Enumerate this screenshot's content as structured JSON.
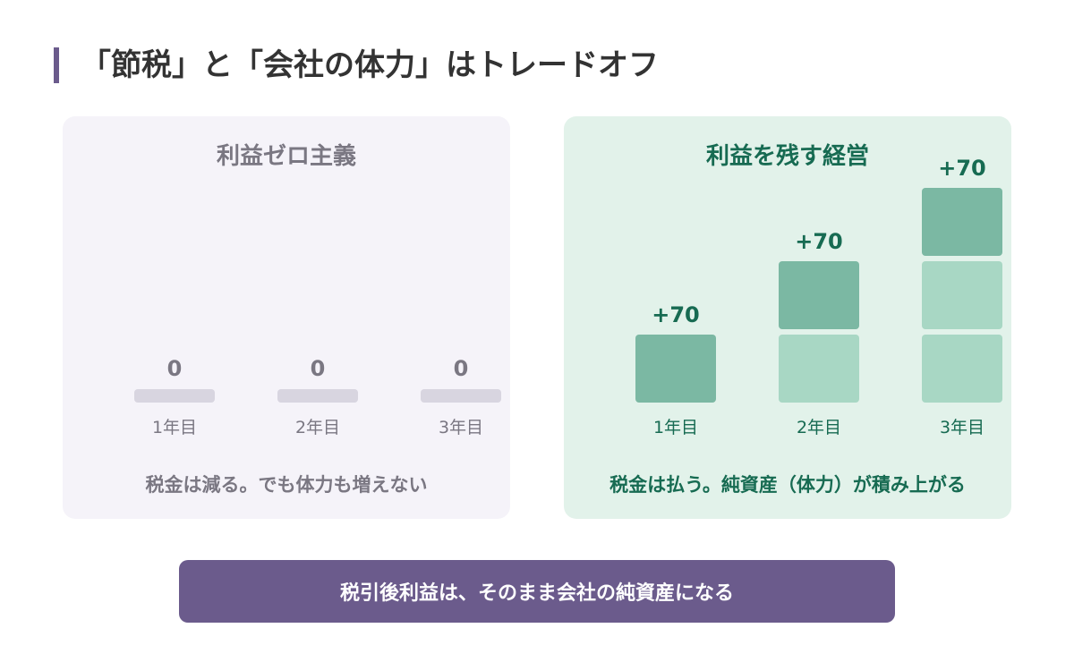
{
  "title": "「節税」と「会社の体力」はトレードオフ",
  "colors": {
    "accent": "#6b5b8c",
    "left_bg": "#f5f3f9",
    "left_text": "#7a7782",
    "left_bar": "#d8d5e0",
    "right_bg": "#e2f2ea",
    "right_text": "#176b52",
    "new_block": "#7bb8a3",
    "old_block": "#a8d7c4"
  },
  "left_panel": {
    "heading": "利益ゼロ主義",
    "caption": "税金は減る。でも体力も増えない",
    "chart_data": {
      "type": "bar",
      "categories": [
        "1年目",
        "2年目",
        "3年目"
      ],
      "values": [
        0,
        0,
        0
      ],
      "value_labels": [
        "0",
        "0",
        "0"
      ]
    }
  },
  "right_panel": {
    "heading": "利益を残す経営",
    "caption": "税金は払う。純資産（体力）が積み上がる",
    "chart_data": {
      "type": "bar",
      "stacked": true,
      "categories": [
        "1年目",
        "2年目",
        "3年目"
      ],
      "increment": 70,
      "values": [
        70,
        140,
        210
      ],
      "value_labels": [
        "+70",
        "+70",
        "+70"
      ]
    }
  },
  "footer": {
    "text": "税引後利益は、そのまま会社の純資産になる"
  }
}
